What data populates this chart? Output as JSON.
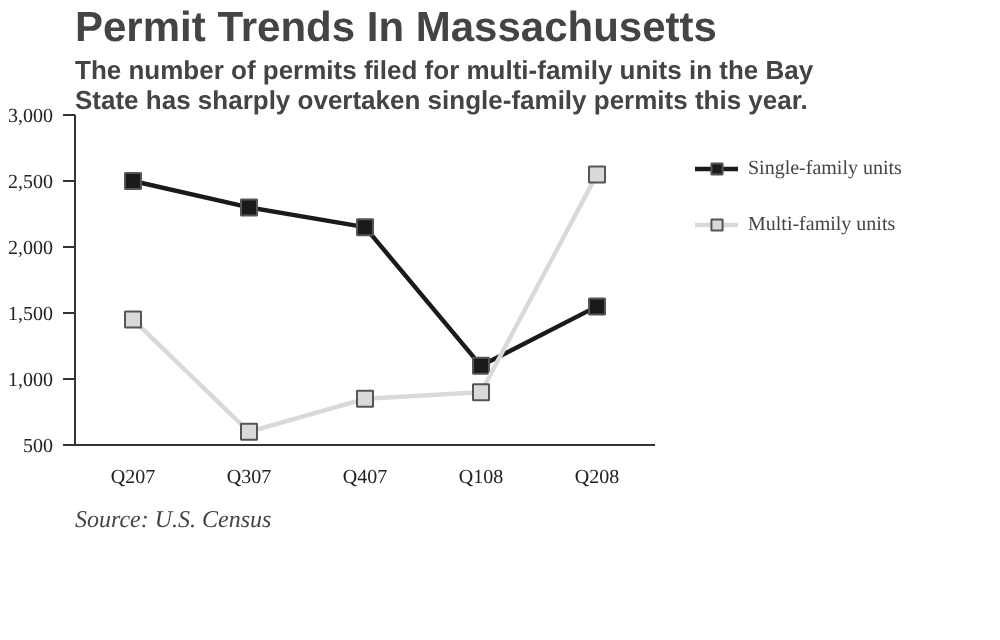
{
  "chart_data": {
    "type": "line",
    "title": "Permit Trends In Massachusetts",
    "subtitle": "The number of permits filed for multi-family units in the Bay State has sharply overtaken single-family permits this year.",
    "categories": [
      "Q207",
      "Q307",
      "Q407",
      "Q108",
      "Q208"
    ],
    "series": [
      {
        "name": "Single-family units",
        "color": "#1a1a1a",
        "values": [
          2500,
          2300,
          2150,
          1100,
          1550
        ]
      },
      {
        "name": "Multi-family units",
        "color": "#d9d9d9",
        "values": [
          1450,
          600,
          850,
          900,
          2550
        ]
      }
    ],
    "ylim": [
      500,
      3000
    ],
    "yticks": [
      {
        "value": 500,
        "label": "500"
      },
      {
        "value": 1000,
        "label": "1,000"
      },
      {
        "value": 1500,
        "label": "1,500"
      },
      {
        "value": 2000,
        "label": "2,000"
      },
      {
        "value": 2500,
        "label": "2,500"
      },
      {
        "value": 3000,
        "label": "3,000"
      }
    ],
    "grid": false,
    "legend": "right",
    "marker": "square",
    "line_style": "solid",
    "annotations": [
      "Source: U.S. Census"
    ]
  }
}
